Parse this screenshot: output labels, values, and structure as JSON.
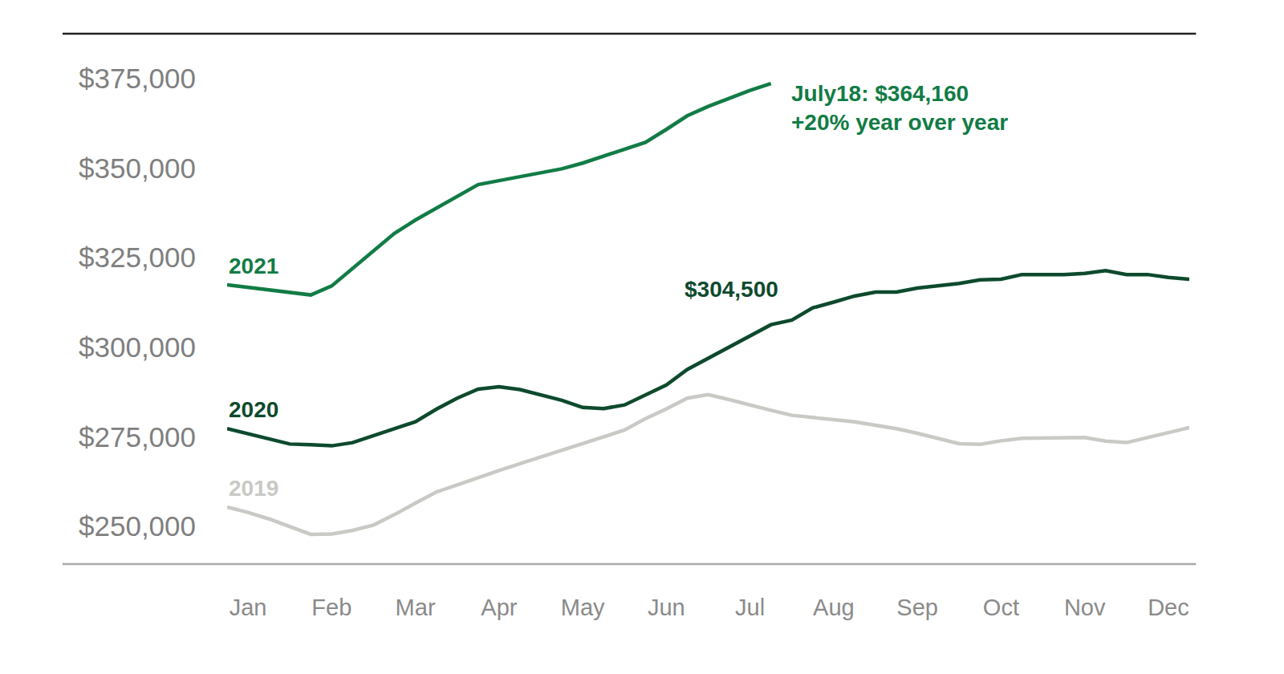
{
  "chart_data": {
    "type": "line",
    "categories": [
      null,
      "Jan",
      null,
      null,
      null,
      "Feb",
      null,
      null,
      null,
      "Mar",
      null,
      null,
      null,
      "Apr",
      null,
      null,
      null,
      "May",
      null,
      null,
      null,
      "Jun",
      null,
      null,
      null,
      "Jul",
      null,
      null,
      null,
      "Aug",
      null,
      null,
      null,
      "Sep",
      null,
      null,
      null,
      "Oct",
      null,
      null,
      null,
      "Nov",
      null,
      null,
      null,
      "Dec",
      null
    ],
    "series": [
      {
        "name": "2019",
        "color": "#c9c9c5",
        "line_style": "solid",
        "values": [
          255400,
          253900,
          252100,
          250000,
          247800,
          247900,
          248900,
          250400,
          253300,
          256500,
          259600,
          261600,
          263700,
          265600,
          267500,
          269400,
          271200,
          273100,
          275000,
          276900,
          280100,
          282800,
          285800,
          286800,
          285400,
          283800,
          282400,
          281000,
          280300,
          279800,
          279200,
          278200,
          277300,
          276000,
          274500,
          273100,
          272900,
          273900,
          274600,
          274600,
          274600,
          274800,
          273800,
          273400,
          274800,
          276200,
          277600
        ]
      },
      {
        "name": "2020",
        "color": "#0e4a2d",
        "line_style": "solid",
        "values": [
          277300,
          275800,
          274300,
          273000,
          272800,
          272500,
          273400,
          275400,
          277300,
          279200,
          282700,
          285800,
          288300,
          289000,
          288200,
          286800,
          285200,
          283200,
          282900,
          283900,
          286800,
          289500,
          293800,
          296900,
          300000,
          303200,
          306300,
          307600,
          311000,
          312600,
          314300,
          315400,
          315400,
          316500,
          317200,
          317800,
          318800,
          319000,
          320300,
          320300,
          320300,
          320600,
          321400,
          320300,
          320300,
          319500,
          319000
        ]
      },
      {
        "name": "2021",
        "color": "#117c45",
        "line_style": "solid",
        "values": [
          317400,
          316700,
          316000,
          315300,
          314600,
          317100,
          322000,
          326900,
          331800,
          335500,
          338800,
          342200,
          345400,
          346500,
          347600,
          348700,
          349800,
          351400,
          353300,
          355200,
          357200,
          360800,
          364600,
          367200,
          369400,
          371700,
          373600,
          null,
          null,
          null,
          null,
          null,
          null,
          null,
          null,
          null,
          null,
          null,
          null,
          null,
          null,
          null,
          null,
          null,
          null,
          null,
          null
        ]
      }
    ],
    "ylim": [
      239500,
      387500
    ],
    "yticks": [
      {
        "value": 250000,
        "label": "$250,000"
      },
      {
        "value": 275000,
        "label": "$275,000"
      },
      {
        "value": 300000,
        "label": "$300,000"
      },
      {
        "value": 325000,
        "label": "$325,000"
      },
      {
        "value": 350000,
        "label": "$350,000"
      },
      {
        "value": 375000,
        "label": "$375,000"
      }
    ],
    "grid": false,
    "annotations": [
      {
        "text": [
          "$304,500"
        ],
        "x": 24.1,
        "y": 316100,
        "color": "#0e4a2d"
      },
      {
        "text": [
          "July18: $364,160",
          "+20% year over year"
        ],
        "x": 26.9,
        "y": 366700,
        "color": "#117c45"
      }
    ]
  }
}
